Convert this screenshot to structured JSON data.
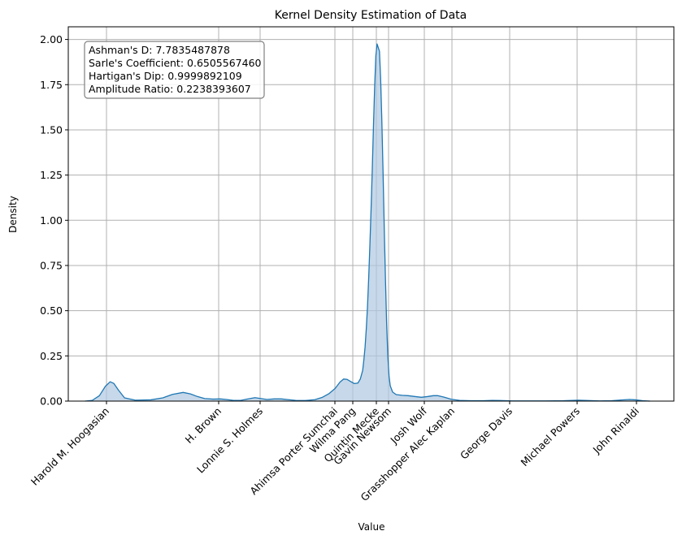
{
  "chart_data": {
    "type": "area",
    "title": "Kernel Density Estimation of Data",
    "xlabel": "Value",
    "ylabel": "Density",
    "ylim": [
      0,
      2.07
    ],
    "grid": true,
    "yticks": [
      0.0,
      0.25,
      0.5,
      0.75,
      1.0,
      1.25,
      1.5,
      1.75,
      2.0
    ],
    "ytick_labels": [
      "0.00",
      "0.25",
      "0.50",
      "0.75",
      "1.00",
      "1.25",
      "1.50",
      "1.75",
      "2.00"
    ],
    "xtick_labels": [
      "Harold M. Hoogasian",
      "H. Brown",
      "Lonnie S. Holmes",
      "Ahimsa Porter Sumchai",
      "Wilma Pang",
      "Quintin Mecke",
      "Gavin Newsom",
      "Josh Wolf",
      "Grasshopper Alec Kaplan",
      "George Davis",
      "Michael Powers",
      "John Rinaldi"
    ],
    "annotation": {
      "lines": [
        "Ashman's D: 7.7835487878",
        "Sarle's Coefficient: 0.6505567460",
        "Hartigan's Dip: 0.9999892109",
        "Amplitude Ratio: 0.2238393607"
      ],
      "placement": "top-left"
    },
    "series": [
      {
        "line_color": "#1f77b4",
        "fill_color": "#aec7e0",
        "points": [
          [
            0.0,
            0.0
          ],
          [
            0.06,
            0.004
          ],
          [
            0.12,
            0.03
          ],
          [
            0.17,
            0.082
          ],
          [
            0.21,
            0.107
          ],
          [
            0.24,
            0.098
          ],
          [
            0.28,
            0.06
          ],
          [
            0.33,
            0.018
          ],
          [
            0.42,
            0.005
          ],
          [
            0.55,
            0.007
          ],
          [
            0.65,
            0.018
          ],
          [
            0.73,
            0.037
          ],
          [
            0.82,
            0.048
          ],
          [
            0.88,
            0.04
          ],
          [
            0.94,
            0.025
          ],
          [
            1.0,
            0.014
          ],
          [
            1.07,
            0.011
          ],
          [
            1.13,
            0.012
          ],
          [
            1.18,
            0.009
          ],
          [
            1.24,
            0.004
          ],
          [
            1.3,
            0.004
          ],
          [
            1.36,
            0.012
          ],
          [
            1.42,
            0.019
          ],
          [
            1.47,
            0.014
          ],
          [
            1.52,
            0.009
          ],
          [
            1.58,
            0.012
          ],
          [
            1.64,
            0.012
          ],
          [
            1.7,
            0.008
          ],
          [
            1.76,
            0.004
          ],
          [
            1.84,
            0.003
          ],
          [
            1.92,
            0.008
          ],
          [
            1.98,
            0.02
          ],
          [
            2.04,
            0.042
          ],
          [
            2.09,
            0.07
          ],
          [
            2.13,
            0.105
          ],
          [
            2.16,
            0.122
          ],
          [
            2.19,
            0.12
          ],
          [
            2.22,
            0.108
          ],
          [
            2.25,
            0.097
          ],
          [
            2.28,
            0.1
          ],
          [
            2.3,
            0.122
          ],
          [
            2.32,
            0.17
          ],
          [
            2.33,
            0.23
          ],
          [
            2.34,
            0.3
          ],
          [
            2.35,
            0.4
          ],
          [
            2.36,
            0.52
          ],
          [
            2.37,
            0.68
          ],
          [
            2.38,
            0.86
          ],
          [
            2.39,
            1.06
          ],
          [
            2.4,
            1.28
          ],
          [
            2.41,
            1.52
          ],
          [
            2.42,
            1.74
          ],
          [
            2.43,
            1.91
          ],
          [
            2.44,
            1.975
          ],
          [
            2.45,
            1.955
          ],
          [
            2.46,
            1.935
          ],
          [
            2.47,
            1.78
          ],
          [
            2.48,
            1.55
          ],
          [
            2.49,
            1.27
          ],
          [
            2.5,
            0.96
          ],
          [
            2.51,
            0.68
          ],
          [
            2.52,
            0.43
          ],
          [
            2.53,
            0.25
          ],
          [
            2.54,
            0.14
          ],
          [
            2.55,
            0.085
          ],
          [
            2.57,
            0.05
          ],
          [
            2.6,
            0.036
          ],
          [
            2.65,
            0.032
          ],
          [
            2.7,
            0.03
          ],
          [
            2.76,
            0.025
          ],
          [
            2.81,
            0.021
          ],
          [
            2.86,
            0.025
          ],
          [
            2.91,
            0.03
          ],
          [
            2.95,
            0.03
          ],
          [
            3.0,
            0.022
          ],
          [
            3.06,
            0.01
          ],
          [
            3.13,
            0.004
          ],
          [
            3.22,
            0.002
          ],
          [
            3.33,
            0.002
          ],
          [
            3.4,
            0.004
          ],
          [
            3.47,
            0.003
          ],
          [
            3.57,
            0.001
          ],
          [
            3.7,
            0.001
          ],
          [
            3.85,
            0.001
          ],
          [
            4.0,
            0.002
          ],
          [
            4.12,
            0.005
          ],
          [
            4.2,
            0.003
          ],
          [
            4.3,
            0.001
          ],
          [
            4.4,
            0.002
          ],
          [
            4.48,
            0.006
          ],
          [
            4.55,
            0.009
          ],
          [
            4.6,
            0.007
          ],
          [
            4.66,
            0.002
          ],
          [
            4.72,
            0.0
          ]
        ]
      }
    ]
  }
}
